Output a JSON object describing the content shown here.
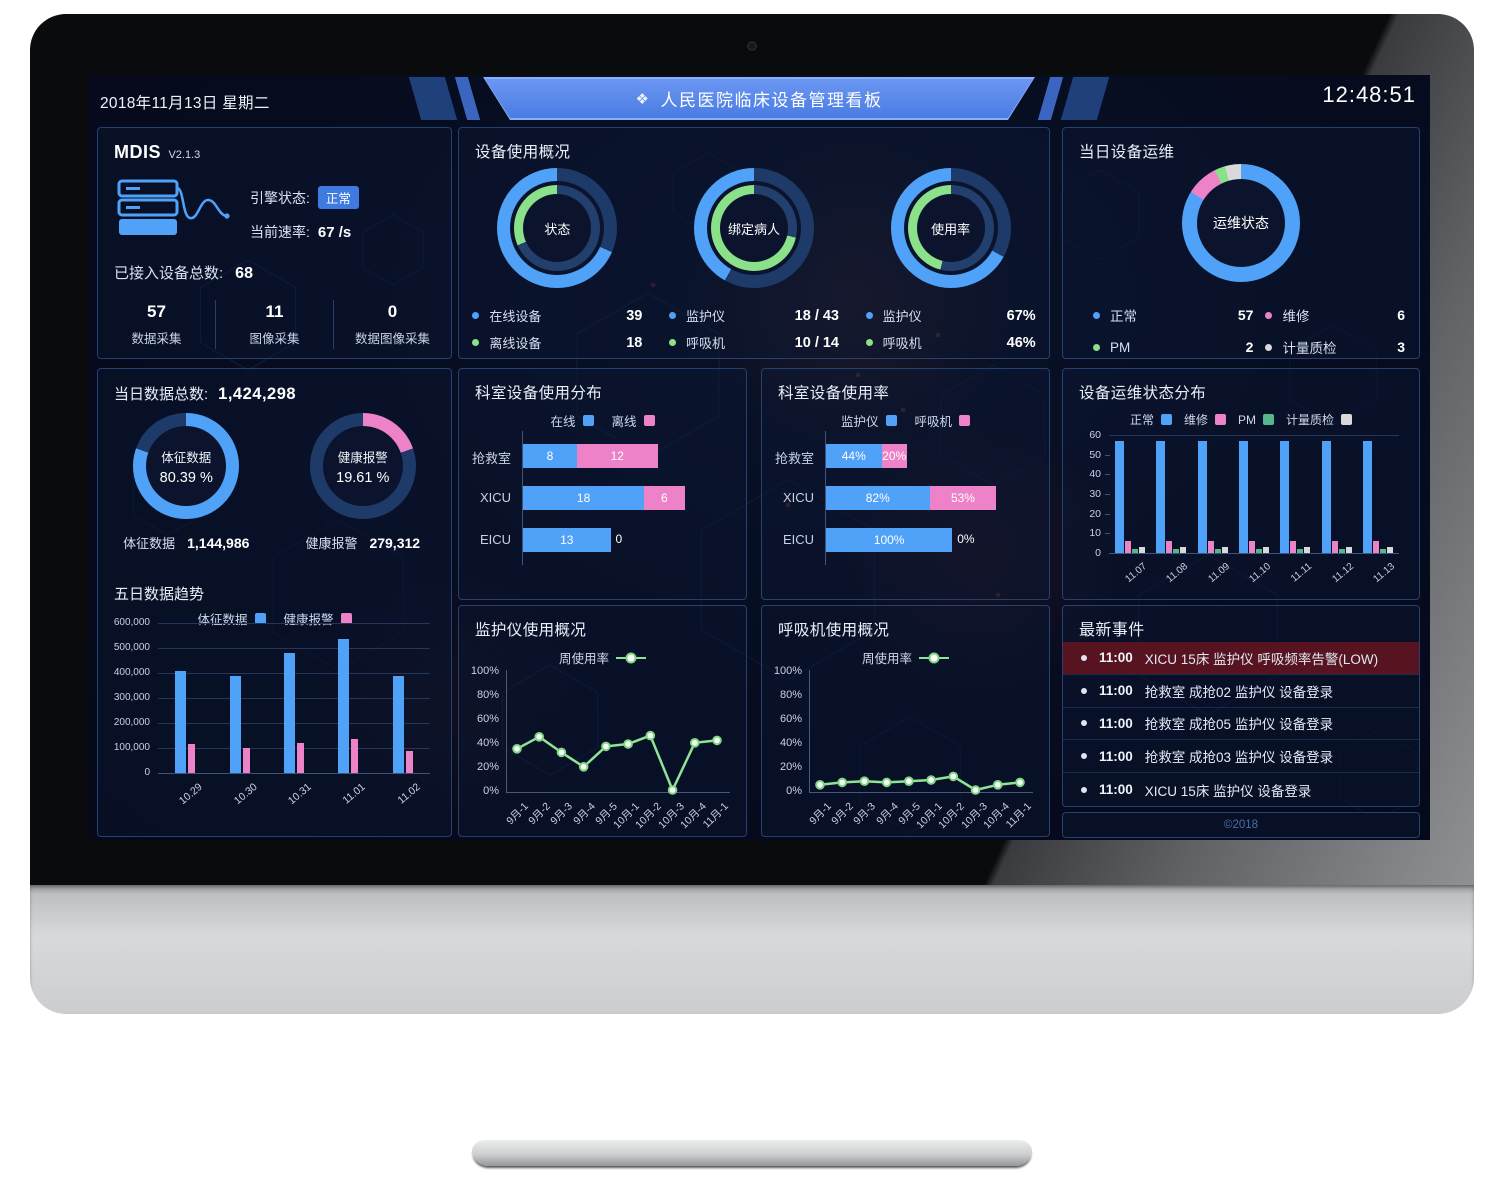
{
  "colors": {
    "blue": "#4fa2f8",
    "pink": "#ee82c8",
    "green": "#8be08a",
    "teal": "#53b789",
    "white_seg": "#d9d9d9",
    "ring_dark": "#1d3a68",
    "ring_dark2": "#223f6d",
    "line_green": "#8fe394"
  },
  "header": {
    "date": "2018年11月13日 星期二",
    "title": "人民医院临床设备管理看板",
    "time": "12:48:51"
  },
  "mdis": {
    "name": "MDIS",
    "version": "V2.1.3",
    "engine_label": "引擎状态:",
    "engine_status": "正常",
    "rate_label": "当前速率:",
    "rate_value": "67 /s",
    "total_label": "已接入设备总数:",
    "total_value": "68",
    "stats": [
      {
        "value": "57",
        "label": "数据采集"
      },
      {
        "value": "11",
        "label": "图像采集"
      },
      {
        "value": "0",
        "label": "数据图像采集"
      }
    ]
  },
  "device_usage": {
    "title": "设备使用概况",
    "gauges": [
      {
        "center": "状态",
        "outer": {
          "colorKey": "blue",
          "percent": 68.4
        },
        "inner": {
          "colorKey": "green",
          "percent": 31.6
        },
        "legend": [
          {
            "colorKey": "blue",
            "label": "在线设备",
            "value": "39"
          },
          {
            "colorKey": "green",
            "label": "离线设备",
            "value": "18"
          }
        ]
      },
      {
        "center": "绑定病人",
        "outer": {
          "colorKey": "blue",
          "percent": 41.9
        },
        "inner": {
          "colorKey": "green",
          "percent": 71.4
        },
        "legend": [
          {
            "colorKey": "blue",
            "label": "监护仪",
            "value": "18 / 43"
          },
          {
            "colorKey": "green",
            "label": "呼吸机",
            "value": "10 / 14"
          }
        ]
      },
      {
        "center": "使用率",
        "outer": {
          "colorKey": "blue",
          "percent": 67
        },
        "inner": {
          "colorKey": "green",
          "percent": 46
        },
        "legend": [
          {
            "colorKey": "blue",
            "label": "监护仪",
            "value": "67%"
          },
          {
            "colorKey": "green",
            "label": "呼吸机",
            "value": "46%"
          }
        ]
      }
    ]
  },
  "daily_ops": {
    "title": "当日设备运维",
    "center": "运维状态",
    "segments": [
      {
        "label": "正常",
        "value": 57,
        "colorKey": "blue"
      },
      {
        "label": "维修",
        "value": 6,
        "colorKey": "pink"
      },
      {
        "label": "PM",
        "value": 2,
        "colorKey": "green"
      },
      {
        "label": "计量质检",
        "value": 3,
        "colorKey": "white_seg"
      }
    ]
  },
  "daily_totals": {
    "title_label": "当日数据总数:",
    "total": "1,424,298",
    "donuts": [
      {
        "label": "体征数据",
        "percent_text": "80.39 %",
        "percent": 80.39,
        "colorKey": "blue",
        "footer_label": "体征数据",
        "footer_value": "1,144,986"
      },
      {
        "label": "健康报警",
        "percent_text": "19.61 %",
        "percent": 19.61,
        "colorKey": "pink",
        "footer_label": "健康报警",
        "footer_value": "279,312"
      }
    ],
    "trend_title": "五日数据趋势"
  },
  "five_day_trend": {
    "type": "bar",
    "categories": [
      "10.29",
      "10.30",
      "10.31",
      "11.01",
      "11.02"
    ],
    "series": [
      {
        "name": "体征数据",
        "colorKey": "blue",
        "values": [
          410000,
          390000,
          480000,
          535000,
          390000
        ]
      },
      {
        "name": "健康报警",
        "colorKey": "pink",
        "values": [
          115000,
          100000,
          120000,
          135000,
          90000
        ]
      }
    ],
    "ymax": 600000,
    "ystep": 100000
  },
  "dept_distribution": {
    "type": "hstack",
    "title": "科室设备使用分布",
    "categories": [
      "抢救室",
      "XICU",
      "EICU"
    ],
    "series": [
      {
        "name": "在线",
        "colorKey": "blue",
        "values": [
          8,
          18,
          13
        ]
      },
      {
        "name": "离线",
        "colorKey": "pink",
        "values": [
          12,
          6,
          0
        ]
      }
    ],
    "xmax": 30,
    "suffix": ""
  },
  "dept_usage": {
    "type": "hstack",
    "title": "科室设备使用率",
    "categories": [
      "抢救室",
      "XICU",
      "EICU"
    ],
    "series": [
      {
        "name": "监护仪",
        "colorKey": "blue",
        "values": [
          44,
          82,
          100
        ]
      },
      {
        "name": "呼吸机",
        "colorKey": "pink",
        "values": [
          20,
          53,
          0
        ]
      }
    ],
    "xmax": 160,
    "suffix": "%"
  },
  "ops_distribution": {
    "type": "bar",
    "title": "设备运维状态分布",
    "categories": [
      "11.07",
      "11.08",
      "11.09",
      "11.10",
      "11.11",
      "11.12",
      "11.13"
    ],
    "series": [
      {
        "name": "正常",
        "colorKey": "blue",
        "values": [
          57,
          57,
          57,
          57,
          57,
          57,
          57
        ]
      },
      {
        "name": "维修",
        "colorKey": "pink",
        "values": [
          6,
          6,
          6,
          6,
          6,
          6,
          6
        ]
      },
      {
        "name": "PM",
        "colorKey": "teal",
        "values": [
          2,
          2,
          2,
          2,
          2,
          2,
          2
        ]
      },
      {
        "name": "计量质检",
        "colorKey": "white_seg",
        "values": [
          3,
          3,
          3,
          3,
          3,
          3,
          3
        ]
      }
    ],
    "ymax": 60,
    "ystep": 10
  },
  "monitor_usage": {
    "type": "line",
    "title": "监护仪使用概况",
    "legend_label": "周使用率",
    "categories": [
      "9月-1",
      "9月-2",
      "9月-3",
      "9月-4",
      "9月-5",
      "10月-1",
      "10月-2",
      "10月-3",
      "10月-4",
      "11月-1"
    ],
    "values": [
      36,
      46,
      33,
      21,
      38,
      40,
      47,
      0,
      41,
      43
    ],
    "ymax": 100,
    "ystep": 20,
    "suffix": "%"
  },
  "ventilator_usage": {
    "type": "line",
    "title": "呼吸机使用概况",
    "legend_label": "周使用率",
    "categories": [
      "9月-1",
      "9月-2",
      "9月-3",
      "9月-4",
      "9月-5",
      "10月-1",
      "10月-2",
      "10月-3",
      "10月-4",
      "11月-1"
    ],
    "values": [
      6,
      8,
      9,
      8,
      9,
      10,
      13,
      0,
      6,
      8
    ],
    "ymax": 100,
    "ystep": 20,
    "suffix": "%"
  },
  "events": {
    "title": "最新事件",
    "items": [
      {
        "time": "11:00",
        "text": "XICU 15床 监护仪 呼吸频率告警(LOW)",
        "alert": true
      },
      {
        "time": "11:00",
        "text": "抢救室 成抢02 监护仪 设备登录",
        "alert": false
      },
      {
        "time": "11:00",
        "text": "抢救室 成抢05 监护仪 设备登录",
        "alert": false
      },
      {
        "time": "11:00",
        "text": "抢救室 成抢03 监护仪 设备登录",
        "alert": false
      },
      {
        "time": "11:00",
        "text": "XICU 15床 监护仪 设备登录",
        "alert": false
      }
    ],
    "copyright": "©2018"
  }
}
